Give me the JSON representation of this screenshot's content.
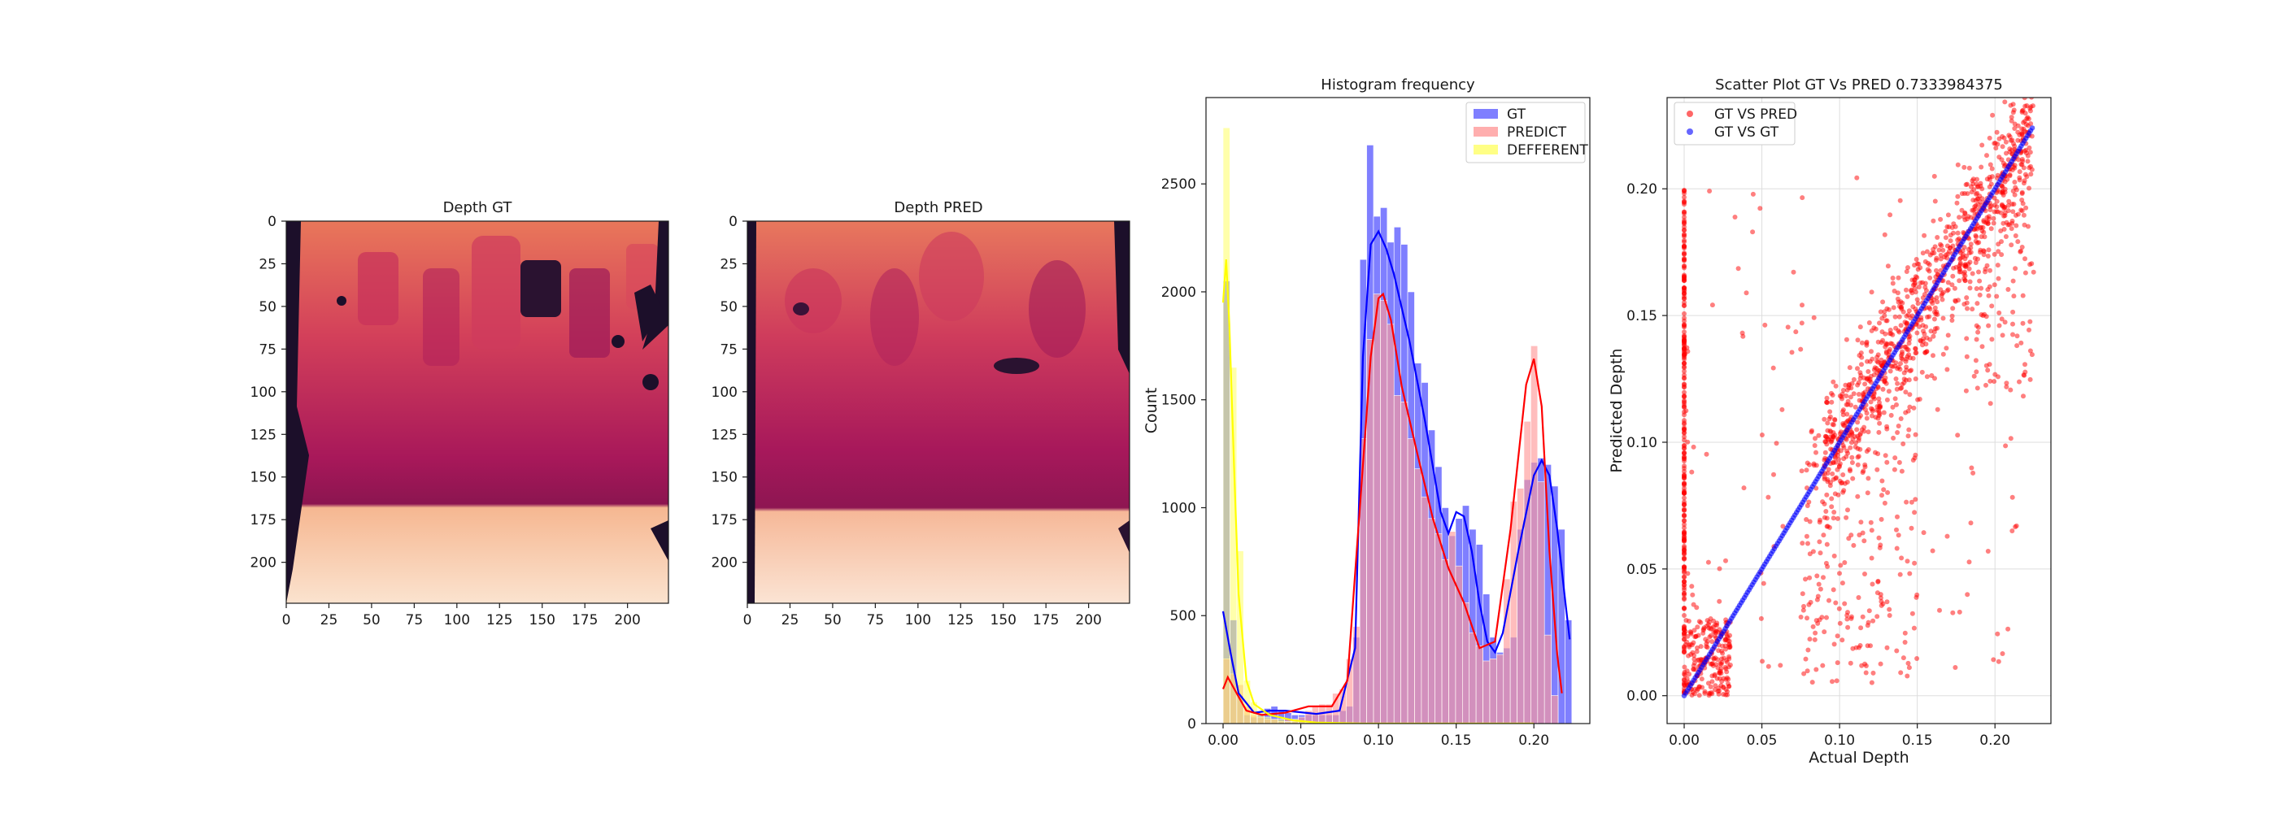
{
  "chart_data": [
    {
      "type": "heatmap",
      "title": "Depth GT",
      "xticks": [
        "0",
        "25",
        "50",
        "75",
        "100",
        "125",
        "150",
        "175",
        "200"
      ],
      "yticks": [
        "0",
        "25",
        "50",
        "75",
        "100",
        "125",
        "150",
        "175",
        "200"
      ],
      "xlim": [
        0,
        224
      ],
      "ylim": [
        0,
        224
      ],
      "colormap": "rocket",
      "colors": {
        "dark": "#1c0f2a",
        "mid": "#b0185a",
        "light": "#fbe3cf"
      }
    },
    {
      "type": "heatmap",
      "title": "Depth PRED",
      "xticks": [
        "0",
        "25",
        "50",
        "75",
        "100",
        "125",
        "150",
        "175",
        "200"
      ],
      "yticks": [
        "0",
        "25",
        "50",
        "75",
        "100",
        "125",
        "150",
        "175",
        "200"
      ],
      "xlim": [
        0,
        224
      ],
      "ylim": [
        0,
        224
      ],
      "colormap": "rocket",
      "colors": {
        "dark": "#1c0f2a",
        "mid": "#b0185a",
        "light": "#fbe3cf"
      }
    },
    {
      "type": "bar",
      "subtype": "histogram_with_kde",
      "title": "Histogram frequency",
      "xlabel": "",
      "ylabel": "Count",
      "xlim": [
        -0.011,
        0.236
      ],
      "ylim": [
        0,
        2900
      ],
      "xticks": [
        "0.00",
        "0.05",
        "0.10",
        "0.15",
        "0.20"
      ],
      "yticks": [
        "0",
        "500",
        "1000",
        "1500",
        "2000",
        "2500"
      ],
      "legend_position": "top-right",
      "bin_width": 0.0044,
      "series": [
        {
          "name": "GT",
          "color": "#0000ff",
          "bins": [
            [
              0.0,
              2050
            ],
            [
              0.0044,
              480
            ],
            [
              0.0088,
              130
            ],
            [
              0.0132,
              40
            ],
            [
              0.0176,
              30
            ],
            [
              0.022,
              40
            ],
            [
              0.0264,
              70
            ],
            [
              0.0308,
              80
            ],
            [
              0.0352,
              60
            ],
            [
              0.0396,
              50
            ],
            [
              0.044,
              40
            ],
            [
              0.0484,
              40
            ],
            [
              0.0528,
              40
            ],
            [
              0.0572,
              40
            ],
            [
              0.0616,
              40
            ],
            [
              0.066,
              40
            ],
            [
              0.0704,
              40
            ],
            [
              0.0748,
              60
            ],
            [
              0.0792,
              80
            ],
            [
              0.0836,
              400
            ],
            [
              0.088,
              2150
            ],
            [
              0.0924,
              2680
            ],
            [
              0.0968,
              2350
            ],
            [
              0.1012,
              2390
            ],
            [
              0.1056,
              2230
            ],
            [
              0.11,
              2300
            ],
            [
              0.1144,
              2220
            ],
            [
              0.1188,
              2000
            ],
            [
              0.1232,
              1670
            ],
            [
              0.1276,
              1580
            ],
            [
              0.132,
              1360
            ],
            [
              0.1364,
              1190
            ],
            [
              0.1408,
              1000
            ],
            [
              0.1452,
              870
            ],
            [
              0.1496,
              950
            ],
            [
              0.154,
              1010
            ],
            [
              0.1584,
              900
            ],
            [
              0.1628,
              830
            ],
            [
              0.1672,
              600
            ],
            [
              0.1716,
              400
            ],
            [
              0.176,
              330
            ],
            [
              0.1804,
              350
            ],
            [
              0.1848,
              400
            ],
            [
              0.1892,
              900
            ],
            [
              0.1936,
              1130
            ],
            [
              0.198,
              1210
            ],
            [
              0.2024,
              1230
            ],
            [
              0.2068,
              1200
            ],
            [
              0.2112,
              1100
            ],
            [
              0.2156,
              900
            ],
            [
              0.22,
              480
            ]
          ],
          "kde": [
            [
              0,
              520
            ],
            [
              0.005,
              320
            ],
            [
              0.01,
              140
            ],
            [
              0.02,
              50
            ],
            [
              0.03,
              60
            ],
            [
              0.04,
              60
            ],
            [
              0.06,
              45
            ],
            [
              0.075,
              60
            ],
            [
              0.085,
              350
            ],
            [
              0.09,
              1700
            ],
            [
              0.095,
              2220
            ],
            [
              0.1,
              2280
            ],
            [
              0.105,
              2200
            ],
            [
              0.11,
              2080
            ],
            [
              0.12,
              1770
            ],
            [
              0.13,
              1400
            ],
            [
              0.14,
              980
            ],
            [
              0.145,
              880
            ],
            [
              0.15,
              980
            ],
            [
              0.155,
              960
            ],
            [
              0.16,
              800
            ],
            [
              0.165,
              560
            ],
            [
              0.17,
              380
            ],
            [
              0.175,
              330
            ],
            [
              0.18,
              420
            ],
            [
              0.19,
              800
            ],
            [
              0.2,
              1150
            ],
            [
              0.205,
              1220
            ],
            [
              0.21,
              1150
            ],
            [
              0.215,
              900
            ],
            [
              0.22,
              580
            ],
            [
              0.223,
              390
            ]
          ]
        },
        {
          "name": "PREDICT",
          "color": "#ff9a9a",
          "bins": [
            [
              0.0,
              300
            ],
            [
              0.0044,
              230
            ],
            [
              0.0088,
              180
            ],
            [
              0.0132,
              80
            ],
            [
              0.0176,
              40
            ],
            [
              0.022,
              30
            ],
            [
              0.0264,
              20
            ],
            [
              0.0308,
              20
            ],
            [
              0.0352,
              10
            ],
            [
              0.0396,
              20
            ],
            [
              0.044,
              20
            ],
            [
              0.0484,
              30
            ],
            [
              0.0528,
              60
            ],
            [
              0.0572,
              80
            ],
            [
              0.0616,
              90
            ],
            [
              0.066,
              90
            ],
            [
              0.0704,
              140
            ],
            [
              0.0748,
              160
            ],
            [
              0.0792,
              300
            ],
            [
              0.0836,
              450
            ],
            [
              0.088,
              1320
            ],
            [
              0.0924,
              1780
            ],
            [
              0.0968,
              1990
            ],
            [
              0.1012,
              1960
            ],
            [
              0.1056,
              1850
            ],
            [
              0.11,
              1520
            ],
            [
              0.1144,
              1490
            ],
            [
              0.1188,
              1320
            ],
            [
              0.1232,
              1180
            ],
            [
              0.1276,
              1050
            ],
            [
              0.132,
              950
            ],
            [
              0.1364,
              880
            ],
            [
              0.1408,
              760
            ],
            [
              0.1452,
              890
            ],
            [
              0.1496,
              730
            ],
            [
              0.154,
              560
            ],
            [
              0.1584,
              420
            ],
            [
              0.1628,
              360
            ],
            [
              0.1672,
              290
            ],
            [
              0.1716,
              300
            ],
            [
              0.176,
              320
            ],
            [
              0.1804,
              670
            ],
            [
              0.1848,
              1030
            ],
            [
              0.1892,
              1090
            ],
            [
              0.1936,
              1400
            ],
            [
              0.198,
              1750
            ],
            [
              0.2024,
              1120
            ],
            [
              0.2068,
              410
            ],
            [
              0.2112,
              130
            ],
            [
              0.2156,
              0
            ],
            [
              0.22,
              0
            ]
          ],
          "kde": [
            [
              0,
              160
            ],
            [
              0.003,
              215
            ],
            [
              0.008,
              150
            ],
            [
              0.015,
              60
            ],
            [
              0.025,
              40
            ],
            [
              0.04,
              50
            ],
            [
              0.055,
              80
            ],
            [
              0.07,
              80
            ],
            [
              0.08,
              200
            ],
            [
              0.088,
              1000
            ],
            [
              0.095,
              1700
            ],
            [
              0.1,
              1970
            ],
            [
              0.103,
              1990
            ],
            [
              0.108,
              1870
            ],
            [
              0.115,
              1560
            ],
            [
              0.125,
              1250
            ],
            [
              0.135,
              950
            ],
            [
              0.145,
              720
            ],
            [
              0.155,
              560
            ],
            [
              0.165,
              350
            ],
            [
              0.175,
              380
            ],
            [
              0.185,
              900
            ],
            [
              0.195,
              1570
            ],
            [
              0.2,
              1690
            ],
            [
              0.205,
              1470
            ],
            [
              0.21,
              800
            ],
            [
              0.215,
              320
            ],
            [
              0.218,
              140
            ]
          ]
        },
        {
          "name": "DEFFERENT",
          "color": "#ffff66",
          "bins": [
            [
              0.0,
              2760
            ],
            [
              0.0044,
              1650
            ],
            [
              0.0088,
              800
            ],
            [
              0.0132,
              200
            ],
            [
              0.0176,
              100
            ],
            [
              0.022,
              50
            ],
            [
              0.0264,
              30
            ],
            [
              0.0308,
              20
            ],
            [
              0.0352,
              20
            ],
            [
              0.0396,
              10
            ],
            [
              0.044,
              10
            ],
            [
              0.0484,
              10
            ],
            [
              0.0528,
              5
            ],
            [
              0.0572,
              5
            ]
          ],
          "kde": [
            [
              0,
              1950
            ],
            [
              0.002,
              2150
            ],
            [
              0.004,
              1850
            ],
            [
              0.007,
              1200
            ],
            [
              0.01,
              600
            ],
            [
              0.015,
              200
            ],
            [
              0.02,
              90
            ],
            [
              0.03,
              40
            ],
            [
              0.045,
              15
            ],
            [
              0.06,
              5
            ],
            [
              0.09,
              0
            ],
            [
              0.12,
              0
            ],
            [
              0.2,
              0
            ]
          ]
        }
      ]
    },
    {
      "type": "scatter",
      "title": "Scatter Plot GT Vs PRED 0.7333984375",
      "xlabel": "Actual Depth",
      "ylabel": "Predicted Depth",
      "xlim": [
        -0.011,
        0.236
      ],
      "ylim": [
        -0.011,
        0.236
      ],
      "xticks": [
        "0.00",
        "0.05",
        "0.10",
        "0.15",
        "0.20"
      ],
      "yticks": [
        "0.00",
        "0.05",
        "0.10",
        "0.15",
        "0.20"
      ],
      "grid": true,
      "legend_position": "top-left",
      "series": [
        {
          "name": "GT VS PRED",
          "color": "#ff0000",
          "description": "dense cloud around identity line, vertical band at x=0"
        },
        {
          "name": "GT VS GT",
          "color": "#0000ff",
          "x_range": [
            0,
            0.224
          ],
          "relation": "y = x"
        }
      ]
    }
  ]
}
